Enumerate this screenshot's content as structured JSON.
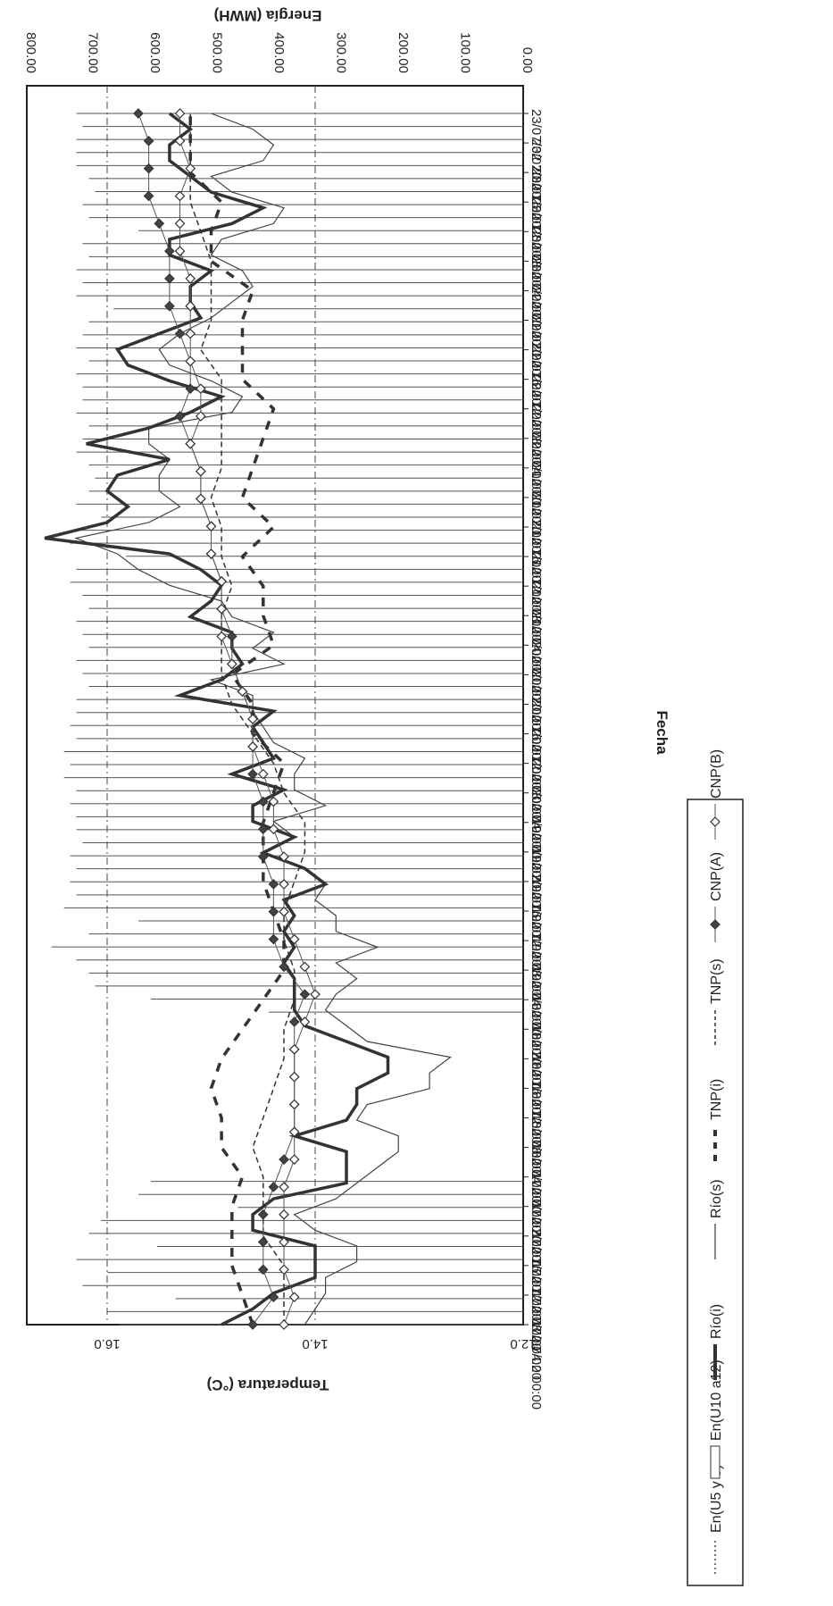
{
  "chart_data": {
    "type": "line",
    "orientation": "rotated 90 degrees clockwise",
    "x_label": "Fecha",
    "y_left_label": "Temperatura (°C)",
    "y_right_label": "Energía (MWH)",
    "y_left_ticks": [
      "16.0",
      "14.0",
      "12.0"
    ],
    "y_right_ticks": [
      "800.00",
      "700.00",
      "600.00",
      "500.00",
      "400.00",
      "300.00",
      "200.00",
      "100.00",
      "0.00"
    ],
    "y_left_range": [
      12.0,
      17.6
    ],
    "y_right_range": [
      0,
      800
    ],
    "x_ticks": [
      "17/07/02 00:00",
      "17/07/02 04:00",
      "17/07/02 08:00",
      "17/07/02 12:00",
      "17/07/02 16:00",
      "17/07/02 20:00",
      "18/07/02 00:00",
      "18/07/02 04:00",
      "18/07/02 08:00",
      "18/07/02 12:00",
      "18/07/02 16:00",
      "18/07/02 20:00",
      "19/07/02 00:00",
      "19/07/02 04:00",
      "19/07/02 08:00",
      "19/07/02 12:00",
      "19/07/02 16:00",
      "19/07/02 20:00",
      "20/07/02 00:00",
      "20/07/02 04:00",
      "20/07/02 08:00",
      "20/07/02 12:00",
      "20/07/02 16:00",
      "20/07/02 20:00",
      "21/07/02 00:00",
      "21/07/02 04:00",
      "21/07/02 08:00",
      "21/07/02 12:00",
      "21/07/02 16:00",
      "21/07/02 20:00",
      "22/07/02 00:00",
      "22/07/02 04:00",
      "22/07/02 08:00",
      "22/07/02 12:00",
      "22/07/02 16:00",
      "22/07/02 20:00",
      "23/07/02 00:00",
      "23/07/02 04:00",
      "23/07/02 08:00",
      "23/07/02 12:00",
      "23/07/02 16:00",
      "23/07/02 20:00"
    ],
    "legend_position": "bottom",
    "grid_y": [
      16.0,
      14.0
    ],
    "series": [
      {
        "name": "En(U5 y 6)",
        "style": "dotted",
        "axis": "right",
        "values": [
          0,
          0,
          0,
          0,
          0,
          0,
          0,
          0,
          0,
          0,
          0,
          0,
          0,
          0,
          0,
          0,
          0,
          0,
          0,
          0,
          0,
          0,
          0,
          0,
          0,
          0,
          0,
          0,
          0,
          0,
          0,
          0,
          0,
          0,
          0,
          0,
          0,
          0,
          0,
          0,
          0,
          0
        ]
      },
      {
        "name": "En(U10 a12)",
        "style": "bar",
        "axis": "right",
        "values": [
          650,
          670,
          560,
          710,
          670,
          720,
          590,
          700,
          680,
          460,
          620,
          600,
          0,
          0,
          0,
          0,
          0,
          0,
          0,
          0,
          0,
          0,
          0,
          0,
          410,
          600,
          690,
          700,
          720,
          760,
          700,
          620,
          740,
          720,
          730,
          720,
          730,
          710,
          720,
          720,
          730,
          720,
          740,
          730,
          740,
          720,
          730,
          720,
          720,
          700,
          710,
          720,
          700,
          710,
          720,
          700,
          710,
          730,
          720,
          640,
          730,
          720,
          680,
          720,
          700,
          690,
          700,
          720,
          710,
          700,
          720,
          710,
          710,
          720,
          700,
          720,
          710,
          700,
          660,
          720,
          710,
          720,
          700,
          710,
          620,
          700,
          710,
          690,
          700,
          720,
          720,
          720,
          710,
          720
        ]
      },
      {
        "name": "Río(i)",
        "style": "thick",
        "axis": "left",
        "values": [
          14.9,
          14.6,
          14.4,
          14.0,
          14.0,
          14.0,
          14.6,
          14.6,
          14.4,
          13.7,
          13.7,
          13.7,
          14.2,
          13.7,
          13.6,
          13.6,
          13.3,
          13.3,
          13.7,
          14.1,
          14.2,
          14.2,
          14.2,
          14.3,
          14.2,
          14.3,
          14.2,
          14.3,
          13.9,
          14.1,
          14.5,
          14.2,
          14.6,
          14.6,
          14.3,
          14.8,
          14.4,
          14.5,
          14.6,
          14.4,
          15.3,
          14.9,
          14.7,
          14.8,
          14.8,
          15.2,
          15.0,
          14.9,
          15.1,
          15.4,
          16.6,
          16.0,
          15.8,
          16.0,
          15.9,
          15.4,
          16.2,
          15.6,
          15.2,
          14.9,
          15.4,
          15.8,
          15.9,
          15.5,
          15.1,
          15.2,
          15.2,
          15.0,
          15.4,
          15.4,
          14.8,
          14.5,
          15.0,
          15.2,
          15.4,
          15.4,
          15.2,
          15.4
        ]
      },
      {
        "name": "Río(s)",
        "style": "thin",
        "axis": "left",
        "values": [
          14.1,
          14.0,
          13.9,
          13.9,
          13.6,
          13.6,
          14.0,
          14.2,
          13.8,
          13.6,
          13.4,
          13.2,
          13.2,
          13.6,
          13.5,
          12.9,
          12.9,
          12.7,
          13.5,
          13.7,
          13.9,
          13.8,
          13.6,
          13.8,
          13.4,
          13.8,
          13.8,
          14.0,
          13.9,
          14.1,
          14.5,
          14.2,
          14.4,
          13.9,
          14.2,
          14.2,
          14.1,
          14.4,
          14.5,
          14.6,
          14.6,
          15.0,
          14.3,
          14.6,
          14.4,
          14.8,
          14.9,
          15.4,
          15.7,
          15.9,
          16.3,
          15.6,
          15.3,
          15.5,
          15.5,
          15.4,
          15.6,
          15.6,
          14.8,
          14.7,
          15.0,
          15.4,
          15.5,
          15.3,
          15.0,
          14.8,
          14.6,
          14.7,
          15.0,
          14.9,
          14.4,
          14.3,
          14.8,
          15.0,
          14.5,
          14.4,
          14.6,
          15.0
        ]
      },
      {
        "name": "TNP(i)",
        "style": "dashed-thick",
        "axis": "left",
        "values": [
          14.6,
          14.7,
          14.8,
          14.8,
          14.8,
          14.7,
          14.9,
          14.9,
          15.0,
          14.9,
          14.7,
          14.5,
          14.3,
          14.3,
          14.4,
          14.5,
          14.5,
          14.5,
          14.4,
          14.3,
          14.6,
          14.6,
          14.8,
          14.4,
          14.5,
          14.5,
          14.7,
          14.4,
          14.7,
          14.6,
          14.5,
          14.4,
          14.7,
          14.7,
          14.7,
          14.6,
          15.0,
          15.0,
          14.9,
          15.2,
          15.2,
          15.2
        ]
      },
      {
        "name": "TNP(s)",
        "style": "dashed-thin",
        "axis": "left",
        "values": [
          14.3,
          14.3,
          14.3,
          14.5,
          14.5,
          14.5,
          14.6,
          14.5,
          14.4,
          14.3,
          14.3,
          14.2,
          14.2,
          14.3,
          14.3,
          14.2,
          14.1,
          14.1,
          14.3,
          14.4,
          14.6,
          14.8,
          14.9,
          14.9,
          14.9,
          14.8,
          14.9,
          14.9,
          15.0,
          14.9,
          14.9,
          14.9,
          14.9,
          15.1,
          15.0,
          15.0,
          15.0,
          15.1,
          15.2,
          15.2,
          15.2,
          15.2
        ]
      },
      {
        "name": "CNP(A)",
        "style": "diamond-filled",
        "axis": "left",
        "values": [
          14.6,
          14.4,
          14.5,
          14.5,
          14.5,
          14.4,
          14.3,
          14.2,
          14.2,
          14.2,
          14.2,
          14.2,
          14.1,
          14.3,
          14.4,
          14.4,
          14.4,
          14.5,
          14.5,
          14.5,
          14.6,
          14.6,
          14.6,
          14.7,
          14.8,
          14.8,
          14.9,
          14.9,
          15.0,
          15.0,
          15.1,
          15.1,
          15.2,
          15.3,
          15.2,
          15.2,
          15.3,
          15.4,
          15.4,
          15.4,
          15.5,
          15.6,
          15.6,
          15.6,
          15.7
        ]
      },
      {
        "name": "CNP(B)",
        "style": "diamond-open",
        "axis": "left",
        "values": [
          14.3,
          14.2,
          14.3,
          14.3,
          14.3,
          14.3,
          14.2,
          14.2,
          14.2,
          14.2,
          14.2,
          14.1,
          14.0,
          14.1,
          14.2,
          14.3,
          14.3,
          14.3,
          14.4,
          14.4,
          14.5,
          14.6,
          14.6,
          14.7,
          14.8,
          14.9,
          14.9,
          14.9,
          15.0,
          15.0,
          15.1,
          15.1,
          15.2,
          15.1,
          15.1,
          15.2,
          15.2,
          15.2,
          15.2,
          15.3,
          15.3,
          15.3,
          15.2,
          15.3,
          15.3
        ]
      }
    ]
  }
}
